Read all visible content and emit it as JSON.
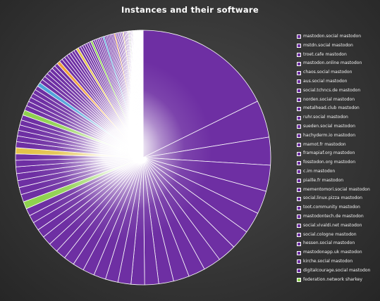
{
  "chart_data": {
    "type": "pie",
    "title": "Instances and their software",
    "legend_position": "right",
    "colors": {
      "mastodon": "#6e2fa3",
      "sharkey": "#8fd14f",
      "other_yellow": "#e3c24a",
      "other_blue": "#4fa3d9",
      "other_orange": "#f0a23c",
      "slice_border": "#ffffff"
    },
    "slices": [
      {
        "label": "mastodon.social mastodon",
        "software": "mastodon",
        "value": 15.0
      },
      {
        "label": "mstdn.social mastodon",
        "software": "mastodon",
        "value": 4.0
      },
      {
        "label": "troet.cafe mastodon",
        "software": "mastodon",
        "value": 3.0
      },
      {
        "label": "mastodon.online mastodon",
        "software": "mastodon",
        "value": 2.8
      },
      {
        "label": "chaos.social mastodon",
        "software": "mastodon",
        "value": 2.5
      },
      {
        "label": "aus.social mastodon",
        "software": "mastodon",
        "value": 2.3
      },
      {
        "label": "social.tchncs.de mastodon",
        "software": "mastodon",
        "value": 2.1
      },
      {
        "label": "norden.social mastodon",
        "software": "mastodon",
        "value": 2.0
      },
      {
        "label": "metalhead.club mastodon",
        "software": "mastodon",
        "value": 1.9
      },
      {
        "label": "ruhr.social mastodon",
        "software": "mastodon",
        "value": 1.8
      },
      {
        "label": "sueden.social mastodon",
        "software": "mastodon",
        "value": 1.7
      },
      {
        "label": "hachyderm.io mastodon",
        "software": "mastodon",
        "value": 1.6
      },
      {
        "label": "mamot.fr mastodon",
        "software": "mastodon",
        "value": 1.5
      },
      {
        "label": "framapiaf.org mastodon",
        "software": "mastodon",
        "value": 1.45
      },
      {
        "label": "fosstodon.org mastodon",
        "software": "mastodon",
        "value": 1.4
      },
      {
        "label": "c.im mastodon",
        "software": "mastodon",
        "value": 1.35
      },
      {
        "label": "piaille.fr mastodon",
        "software": "mastodon",
        "value": 1.3
      },
      {
        "label": "mementomori.social mastodon",
        "software": "mastodon",
        "value": 1.25
      },
      {
        "label": "social.linux.pizza mastodon",
        "software": "mastodon",
        "value": 1.2
      },
      {
        "label": "toot.community mastodon",
        "software": "mastodon",
        "value": 1.15
      },
      {
        "label": "mastodontech.de mastodon",
        "software": "mastodon",
        "value": 1.1
      },
      {
        "label": "social.vivaldi.net mastodon",
        "software": "mastodon",
        "value": 1.05
      },
      {
        "label": "social.cologne mastodon",
        "software": "mastodon",
        "value": 1.0
      },
      {
        "label": "hessen.social mastodon",
        "software": "mastodon",
        "value": 0.95
      },
      {
        "label": "mastodonapp.uk mastodon",
        "software": "mastodon",
        "value": 0.9
      },
      {
        "label": "kirche.social mastodon",
        "software": "mastodon",
        "value": 0.85
      },
      {
        "label": "digitalcourage.social mastodon",
        "software": "mastodon",
        "value": 0.8
      },
      {
        "label": "federation.network sharkey",
        "software": "sharkey",
        "value": 0.8
      }
    ],
    "tail_slices": {
      "software_pattern": [
        "mastodon",
        "mastodon",
        "mastodon",
        "mastodon",
        "mastodon",
        "mastodon",
        "mastodon",
        "other_yellow",
        "mastodon",
        "mastodon",
        "mastodon",
        "mastodon",
        "mastodon",
        "mastodon",
        "sharkey",
        "mastodon",
        "mastodon",
        "mastodon",
        "mastodon",
        "mastodon",
        "mastodon",
        "other_blue",
        "mastodon",
        "mastodon",
        "mastodon",
        "mastodon",
        "mastodon",
        "mastodon",
        "mastodon",
        "other_orange"
      ],
      "values": [
        0.8,
        0.78,
        0.76,
        0.74,
        0.72,
        0.7,
        0.68,
        0.66,
        0.64,
        0.62,
        0.6,
        0.58,
        0.56,
        0.55,
        0.54,
        0.52,
        0.5,
        0.49,
        0.48,
        0.46,
        0.45,
        0.44,
        0.42,
        0.41,
        0.4,
        0.39,
        0.38,
        0.37,
        0.36,
        0.35,
        0.34,
        0.33,
        0.32,
        0.31,
        0.3,
        0.29,
        0.28,
        0.27,
        0.26,
        0.25,
        0.25,
        0.24,
        0.23,
        0.22,
        0.22,
        0.21,
        0.2,
        0.2,
        0.19,
        0.18,
        0.18,
        0.17,
        0.17,
        0.16,
        0.16,
        0.15,
        0.15,
        0.14,
        0.14,
        0.13,
        0.13,
        0.12,
        0.12,
        0.12,
        0.11,
        0.11,
        0.1,
        0.1,
        0.1,
        0.09,
        0.09,
        0.09,
        0.08,
        0.08,
        0.08,
        0.08,
        0.07,
        0.07,
        0.07,
        0.07,
        0.06,
        0.06,
        0.06,
        0.06,
        0.05,
        0.05,
        0.05,
        0.05,
        0.05,
        0.04,
        0.04,
        0.04,
        0.04,
        0.04,
        0.04,
        0.03,
        0.03,
        0.03,
        0.03,
        0.03,
        0.03,
        0.03,
        0.02,
        0.02,
        0.02,
        0.02,
        0.02,
        0.02,
        0.02,
        0.02
      ]
    }
  }
}
